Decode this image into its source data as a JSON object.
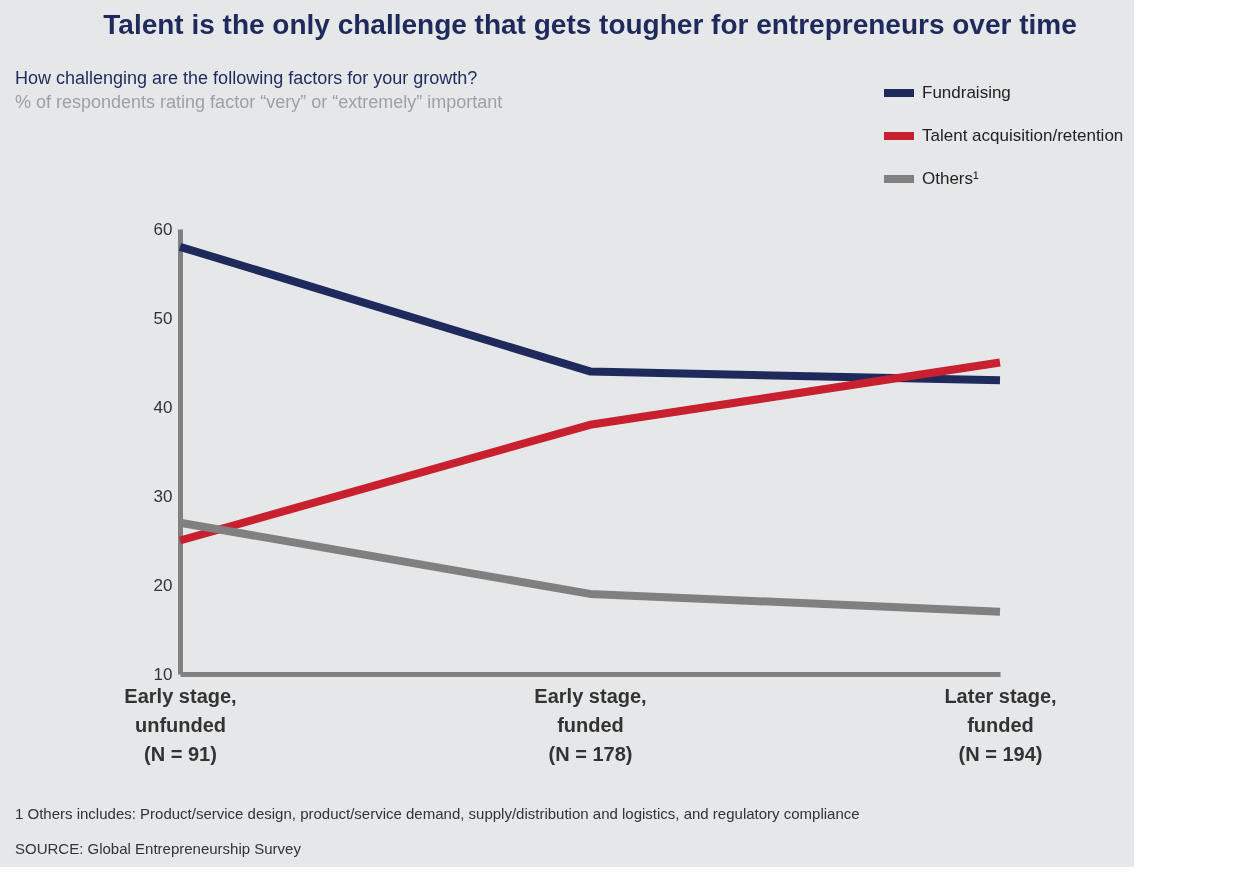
{
  "chart_data": {
    "type": "line",
    "title": "Talent is the only challenge that gets tougher for entrepreneurs over time",
    "subtitle": "How challenging are the following factors for your growth?",
    "categories": [
      "Early stage,\nunfunded\n(N = 91)",
      "Early stage,\nfunded\n(N = 178)",
      "Later stage,\nfunded\n(N = 194)"
    ],
    "series": [
      {
        "name": "Fundraising",
        "color": "#1f2a5c",
        "values": [
          58,
          44,
          43
        ]
      },
      {
        "name": "Talent acquisition/retention",
        "color": "#c8202f",
        "values": [
          25,
          38,
          45
        ]
      },
      {
        "name": "Others¹",
        "color": "#808080",
        "values": [
          27,
          19,
          17
        ]
      }
    ],
    "ylim": [
      10,
      60
    ],
    "yticks": [
      10,
      20,
      30,
      40,
      50,
      60
    ],
    "grid": false,
    "legend": "top right",
    "marker": "none",
    "line_style": "solid",
    "annotations": [
      "% of respondents rating factor “very” or “extremely” important",
      "1 Others includes: Product/service design, product/service demand, supply/distribution and logistics, and regulatory compliance",
      "SOURCE: Global Entrepreneurship Survey"
    ]
  }
}
